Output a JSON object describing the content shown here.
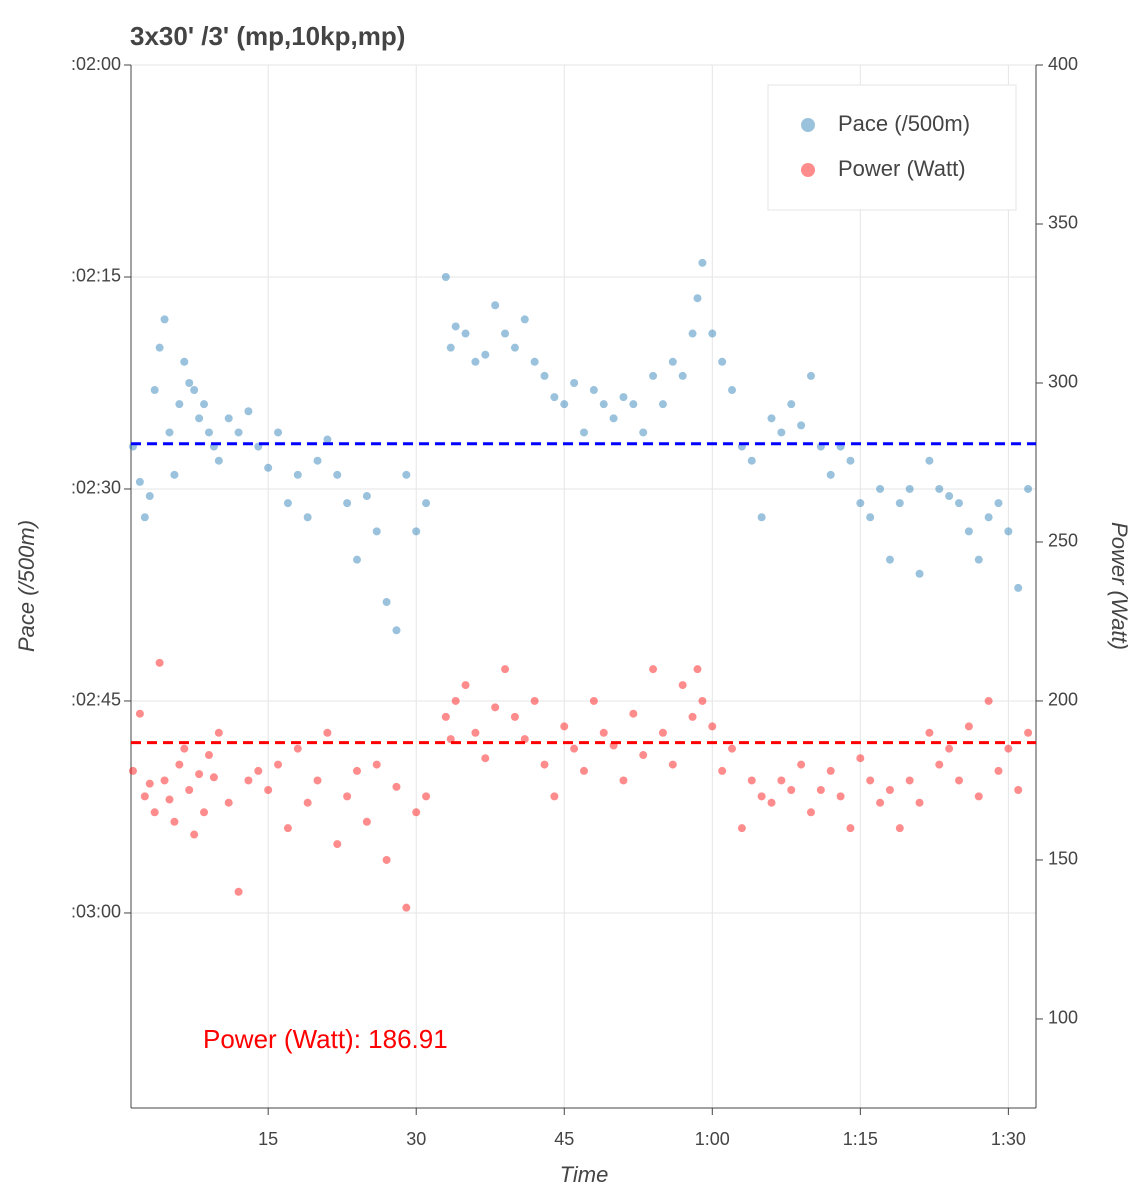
{
  "chart_data": {
    "type": "scatter",
    "title": "3x30' /3' (mp,10kp,mp)",
    "x_label": "Time",
    "y_label": "Pace (/500m)",
    "y2_label": "Power (Watt)",
    "annotation": "Power (Watt): 186.91",
    "xlim": [
      1.1,
      92.8
    ],
    "xticks": [
      15,
      30,
      45,
      {
        "value": 60,
        "label": "1:00"
      },
      {
        "value": 75,
        "label": "1:15"
      },
      {
        "value": 90,
        "label": "1:30"
      }
    ],
    "ylim": [
      120,
      193.8
    ],
    "y_inverted": true,
    "yticks": [
      {
        "value": 120,
        "label": ":02:00"
      },
      {
        "value": 135,
        "label": ":02:15"
      },
      {
        "value": 150,
        "label": ":02:30"
      },
      {
        "value": 165,
        "label": ":02:45"
      },
      {
        "value": 180,
        "label": ":03:00"
      }
    ],
    "y2lim": [
      72,
      400
    ],
    "y2ticks": [
      100,
      150,
      200,
      250,
      300,
      350,
      400
    ],
    "grid": true,
    "legend": "top-right",
    "reference_lines": [
      {
        "axis": "y",
        "value": 146.8,
        "color": "#0000ff"
      },
      {
        "axis": "y2",
        "value": 186.91,
        "color": "#ff0000"
      }
    ],
    "series": [
      {
        "name": "Pace (/500m)",
        "color": "#1f77b4",
        "axis": "y",
        "x": [
          1.3,
          2,
          2.5,
          3,
          3.5,
          4,
          4.5,
          5,
          5.5,
          6,
          6.5,
          7,
          7.5,
          8,
          8.5,
          9,
          9.5,
          10,
          11,
          12,
          13,
          14,
          15,
          16,
          17,
          18,
          19,
          20,
          21,
          22,
          23,
          24,
          25,
          26,
          27,
          28,
          29,
          30,
          31,
          33,
          33.5,
          34,
          35,
          36,
          37,
          38,
          39,
          40,
          41,
          42,
          43,
          44,
          45,
          46,
          47,
          48,
          49,
          50,
          51,
          52,
          53,
          54,
          55,
          56,
          57,
          58,
          58.5,
          59,
          60,
          61,
          62,
          63,
          64,
          65,
          66,
          67,
          68,
          69,
          70,
          71,
          72,
          73,
          74,
          75,
          76,
          77,
          78,
          79,
          80,
          81,
          82,
          83,
          84,
          85,
          86,
          87,
          88,
          89,
          90,
          91,
          92
        ],
        "values": [
          147,
          149.5,
          152,
          150.5,
          143,
          140,
          138,
          146,
          149,
          144,
          141,
          142.5,
          143,
          145,
          144,
          146,
          147,
          148,
          145,
          146,
          144.5,
          147,
          148.5,
          146,
          151,
          149,
          152,
          148,
          146.5,
          149,
          151,
          155,
          150.5,
          153,
          158,
          160,
          149,
          153,
          151,
          135,
          140,
          138.5,
          139,
          141,
          140.5,
          137,
          139,
          140,
          138,
          141,
          142,
          143.5,
          144,
          142.5,
          146,
          143,
          144,
          145,
          143.5,
          144,
          146,
          142,
          144,
          141,
          142,
          139,
          136.5,
          134,
          139,
          141,
          143,
          147,
          148,
          152,
          145,
          146,
          144,
          145.5,
          142,
          147,
          149,
          147,
          148,
          151,
          152,
          150,
          155,
          151,
          150,
          156,
          148,
          150,
          150.5,
          151,
          153,
          155,
          152,
          151,
          153,
          157,
          150
        ]
      },
      {
        "name": "Power (Watt)",
        "color": "#ff0000",
        "axis": "y2",
        "x": [
          1.3,
          2,
          2.5,
          3,
          3.5,
          4,
          4.5,
          5,
          5.5,
          6,
          6.5,
          7,
          7.5,
          8,
          8.5,
          9,
          9.5,
          10,
          11,
          12,
          13,
          14,
          15,
          16,
          17,
          18,
          19,
          20,
          21,
          22,
          23,
          24,
          25,
          26,
          27,
          28,
          29,
          30,
          31,
          33,
          33.5,
          34,
          35,
          36,
          37,
          38,
          39,
          40,
          41,
          42,
          43,
          44,
          45,
          46,
          47,
          48,
          49,
          50,
          51,
          52,
          53,
          54,
          55,
          56,
          57,
          58,
          58.5,
          59,
          60,
          61,
          62,
          63,
          64,
          65,
          66,
          67,
          68,
          69,
          70,
          71,
          72,
          73,
          74,
          75,
          76,
          77,
          78,
          79,
          80,
          81,
          82,
          83,
          84,
          85,
          86,
          87,
          88,
          89,
          90,
          91,
          92
        ],
        "values": [
          178,
          196,
          170,
          174,
          165,
          212,
          175,
          169,
          162,
          180,
          185,
          172,
          158,
          177,
          165,
          183,
          176,
          190,
          168,
          140,
          175,
          178,
          172,
          180,
          160,
          185,
          168,
          175,
          190,
          155,
          170,
          178,
          162,
          180,
          150,
          173,
          135,
          165,
          170,
          195,
          188,
          200,
          205,
          190,
          182,
          198,
          210,
          195,
          188,
          200,
          180,
          170,
          192,
          185,
          178,
          200,
          190,
          186,
          175,
          196,
          183,
          210,
          190,
          180,
          205,
          195,
          210,
          200,
          192,
          178,
          185,
          160,
          175,
          170,
          168,
          175,
          172,
          180,
          165,
          172,
          178,
          170,
          160,
          182,
          175,
          168,
          172,
          160,
          175,
          168,
          190,
          180,
          185,
          175,
          192,
          170,
          200,
          178,
          185,
          172,
          190
        ]
      }
    ]
  }
}
